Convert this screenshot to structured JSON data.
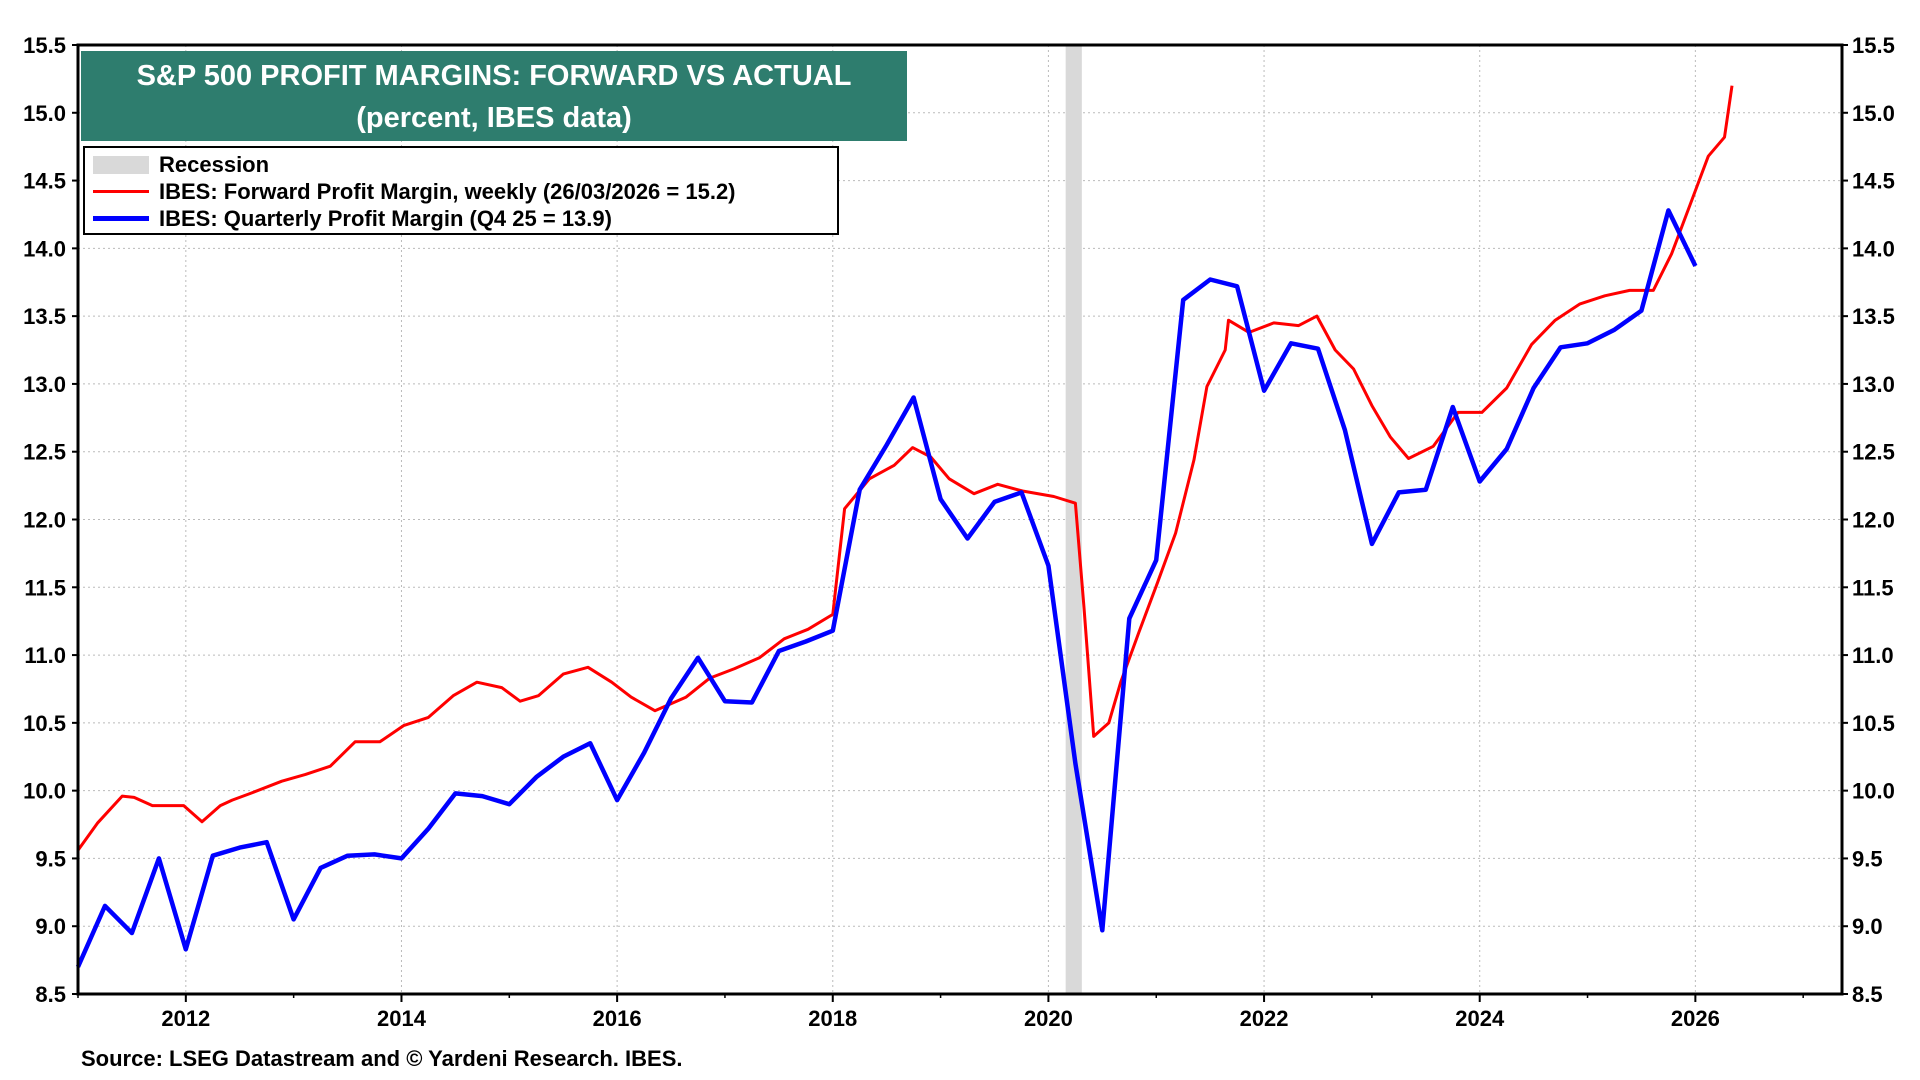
{
  "chart_data": {
    "type": "line",
    "title": "S&P 500 PROFIT MARGINS: FORWARD VS ACTUAL",
    "subtitle": "(percent, IBES data)",
    "source": "Source: LSEG Datastream and © Yardeni Research. IBES.",
    "xlim": [
      2011.0,
      2027.36
    ],
    "ylim": [
      8.5,
      15.5
    ],
    "x_ticks": [
      "2012",
      "2014",
      "2016",
      "2018",
      "2020",
      "2022",
      "2024",
      "2026"
    ],
    "y_ticks": [
      "8.5",
      "9.0",
      "9.5",
      "10.0",
      "10.5",
      "11.0",
      "11.5",
      "12.0",
      "12.5",
      "13.0",
      "13.5",
      "14.0",
      "14.5",
      "15.0",
      "15.5"
    ],
    "grid": true,
    "legend_position": "top-left",
    "legend": {
      "recession": "Recession",
      "forward": "IBES: Forward Profit Margin, weekly (26/03/2026 = 15.2)",
      "quarterly": "IBES: Quarterly Profit Margin (Q4 25 = 13.9)"
    },
    "recessions": [
      [
        2020.16,
        2020.31
      ]
    ],
    "colors": {
      "forward": "#ff0000",
      "quarterly": "#0000ff",
      "recession": "#d9d9d9",
      "title_bg": "#2e7d6e"
    },
    "series": [
      {
        "name": "IBES: Forward Profit Margin, weekly (26/03/2026 = 15.2)",
        "color": "#ff0000",
        "points": [
          [
            2011.0,
            9.56
          ],
          [
            2011.18,
            9.76
          ],
          [
            2011.41,
            9.96
          ],
          [
            2011.52,
            9.95
          ],
          [
            2011.69,
            9.89
          ],
          [
            2011.98,
            9.89
          ],
          [
            2012.15,
            9.77
          ],
          [
            2012.32,
            9.89
          ],
          [
            2012.43,
            9.93
          ],
          [
            2012.6,
            9.98
          ],
          [
            2012.89,
            10.07
          ],
          [
            2013.11,
            10.12
          ],
          [
            2013.34,
            10.18
          ],
          [
            2013.57,
            10.36
          ],
          [
            2013.8,
            10.36
          ],
          [
            2014.02,
            10.48
          ],
          [
            2014.25,
            10.54
          ],
          [
            2014.48,
            10.7
          ],
          [
            2014.7,
            10.8
          ],
          [
            2014.93,
            10.76
          ],
          [
            2015.1,
            10.66
          ],
          [
            2015.27,
            10.7
          ],
          [
            2015.5,
            10.86
          ],
          [
            2015.73,
            10.91
          ],
          [
            2015.95,
            10.8
          ],
          [
            2016.13,
            10.69
          ],
          [
            2016.35,
            10.59
          ],
          [
            2016.64,
            10.69
          ],
          [
            2016.86,
            10.83
          ],
          [
            2017.09,
            10.9
          ],
          [
            2017.32,
            10.98
          ],
          [
            2017.55,
            11.12
          ],
          [
            2017.77,
            11.19
          ],
          [
            2018.0,
            11.3
          ],
          [
            2018.11,
            12.08
          ],
          [
            2018.34,
            12.3
          ],
          [
            2018.57,
            12.4
          ],
          [
            2018.74,
            12.53
          ],
          [
            2018.91,
            12.46
          ],
          [
            2019.08,
            12.3
          ],
          [
            2019.31,
            12.19
          ],
          [
            2019.53,
            12.26
          ],
          [
            2019.76,
            12.21
          ],
          [
            2020.05,
            12.17
          ],
          [
            2020.25,
            12.12
          ],
          [
            2020.33,
            11.35
          ],
          [
            2020.42,
            10.4
          ],
          [
            2020.56,
            10.5
          ],
          [
            2020.67,
            10.8
          ],
          [
            2020.84,
            11.17
          ],
          [
            2021.01,
            11.53
          ],
          [
            2021.18,
            11.9
          ],
          [
            2021.35,
            12.44
          ],
          [
            2021.47,
            12.98
          ],
          [
            2021.64,
            13.25
          ],
          [
            2021.67,
            13.47
          ],
          [
            2021.86,
            13.38
          ],
          [
            2022.09,
            13.45
          ],
          [
            2022.32,
            13.43
          ],
          [
            2022.49,
            13.5
          ],
          [
            2022.66,
            13.25
          ],
          [
            2022.83,
            13.11
          ],
          [
            2023.0,
            12.84
          ],
          [
            2023.17,
            12.61
          ],
          [
            2023.34,
            12.45
          ],
          [
            2023.57,
            12.54
          ],
          [
            2023.8,
            12.79
          ],
          [
            2024.02,
            12.79
          ],
          [
            2024.25,
            12.97
          ],
          [
            2024.48,
            13.29
          ],
          [
            2024.7,
            13.47
          ],
          [
            2024.93,
            13.59
          ],
          [
            2025.16,
            13.65
          ],
          [
            2025.39,
            13.69
          ],
          [
            2025.61,
            13.69
          ],
          [
            2025.78,
            13.96
          ],
          [
            2025.95,
            14.32
          ],
          [
            2026.12,
            14.68
          ],
          [
            2026.27,
            14.82
          ],
          [
            2026.34,
            15.2
          ]
        ]
      },
      {
        "name": "IBES: Quarterly Profit Margin (Q4 25 = 13.9)",
        "color": "#0000ff",
        "points": [
          [
            2011.0,
            8.7
          ],
          [
            2011.25,
            9.15
          ],
          [
            2011.5,
            8.95
          ],
          [
            2011.75,
            9.5
          ],
          [
            2012.0,
            8.83
          ],
          [
            2012.25,
            9.52
          ],
          [
            2012.5,
            9.58
          ],
          [
            2012.75,
            9.62
          ],
          [
            2013.0,
            9.05
          ],
          [
            2013.25,
            9.43
          ],
          [
            2013.5,
            9.52
          ],
          [
            2013.75,
            9.53
          ],
          [
            2014.0,
            9.5
          ],
          [
            2014.25,
            9.72
          ],
          [
            2014.5,
            9.98
          ],
          [
            2014.75,
            9.96
          ],
          [
            2015.0,
            9.9
          ],
          [
            2015.25,
            10.1
          ],
          [
            2015.5,
            10.25
          ],
          [
            2015.75,
            10.35
          ],
          [
            2016.0,
            9.93
          ],
          [
            2016.25,
            10.28
          ],
          [
            2016.5,
            10.68
          ],
          [
            2016.75,
            10.98
          ],
          [
            2017.0,
            10.66
          ],
          [
            2017.25,
            10.65
          ],
          [
            2017.5,
            11.03
          ],
          [
            2017.75,
            11.1
          ],
          [
            2018.0,
            11.18
          ],
          [
            2018.25,
            12.22
          ],
          [
            2018.5,
            12.55
          ],
          [
            2018.75,
            12.9
          ],
          [
            2019.0,
            12.15
          ],
          [
            2019.25,
            11.86
          ],
          [
            2019.5,
            12.13
          ],
          [
            2019.75,
            12.2
          ],
          [
            2020.0,
            11.66
          ],
          [
            2020.25,
            10.2
          ],
          [
            2020.5,
            8.97
          ],
          [
            2020.75,
            11.27
          ],
          [
            2021.0,
            11.7
          ],
          [
            2021.25,
            13.62
          ],
          [
            2021.5,
            13.77
          ],
          [
            2021.75,
            13.72
          ],
          [
            2022.0,
            12.95
          ],
          [
            2022.25,
            13.3
          ],
          [
            2022.5,
            13.26
          ],
          [
            2022.75,
            12.66
          ],
          [
            2023.0,
            11.82
          ],
          [
            2023.25,
            12.2
          ],
          [
            2023.5,
            12.22
          ],
          [
            2023.75,
            12.83
          ],
          [
            2024.0,
            12.28
          ],
          [
            2024.25,
            12.52
          ],
          [
            2024.5,
            12.97
          ],
          [
            2024.75,
            13.27
          ],
          [
            2025.0,
            13.3
          ],
          [
            2025.25,
            13.4
          ],
          [
            2025.5,
            13.54
          ],
          [
            2025.75,
            14.28
          ],
          [
            2026.0,
            13.87
          ]
        ]
      }
    ]
  }
}
